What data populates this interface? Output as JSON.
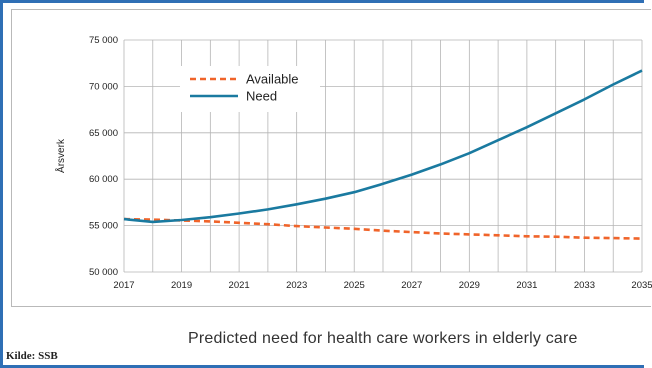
{
  "chart_data": {
    "type": "line",
    "title": "",
    "xlabel": "",
    "ylabel": "Årsverk",
    "x": [
      2017,
      2018,
      2019,
      2020,
      2021,
      2022,
      2023,
      2024,
      2025,
      2026,
      2027,
      2028,
      2029,
      2030,
      2031,
      2032,
      2033,
      2034,
      2035
    ],
    "x_tick_labels": [
      "2017",
      "2019",
      "2021",
      "2023",
      "2025",
      "2027",
      "2029",
      "2031",
      "2033",
      "2035"
    ],
    "y_tick_labels": [
      "75 000",
      "70 000",
      "65 000",
      "60 000",
      "55 000",
      "50 000"
    ],
    "ylim": [
      50000,
      75000
    ],
    "xlim": [
      2017,
      2035
    ],
    "grid": true,
    "legend_position": "top-left",
    "series": [
      {
        "name": "Available",
        "style": "dashed",
        "color": "#f0642a",
        "values": [
          55700,
          55650,
          55550,
          55450,
          55300,
          55150,
          54950,
          54800,
          54650,
          54450,
          54300,
          54150,
          54050,
          53950,
          53850,
          53800,
          53700,
          53650,
          53600
        ]
      },
      {
        "name": "Need",
        "style": "solid",
        "color": "#1a7aa0",
        "values": [
          55700,
          55400,
          55600,
          55900,
          56300,
          56750,
          57300,
          57900,
          58600,
          59500,
          60500,
          61600,
          62800,
          64200,
          65600,
          67100,
          68600,
          70200,
          71700
        ]
      }
    ]
  },
  "caption": "Predicted need for health care workers in elderly care",
  "source": "Kilde: SSB",
  "colors": {
    "frame": "#2f6fb5",
    "grid": "#b5b5b5"
  }
}
